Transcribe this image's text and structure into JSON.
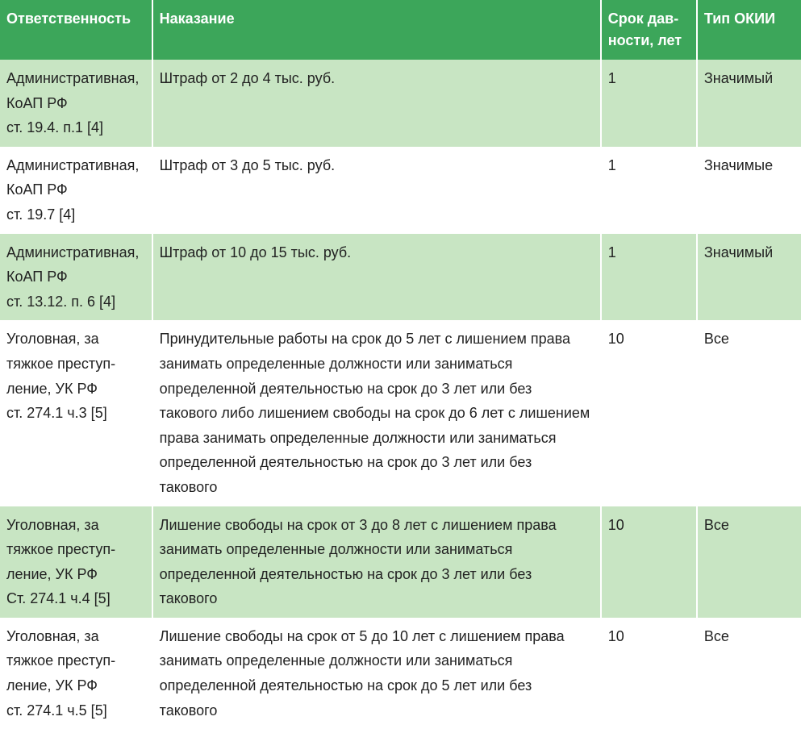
{
  "table": {
    "header_bg": "#3ca65a",
    "header_fg": "#ffffff",
    "row_even_bg": "#c8e5c3",
    "row_odd_bg": "#ffffff",
    "columns": [
      {
        "key": "responsibility",
        "label": "Ответственность",
        "width": "19%"
      },
      {
        "key": "punishment",
        "label": "Наказание",
        "width": "56%"
      },
      {
        "key": "limitation",
        "label": "Срок дав-\nности, лет",
        "width": "12%"
      },
      {
        "key": "okii_type",
        "label": "Тип ОКИИ",
        "width": "13%"
      }
    ],
    "rows": [
      {
        "responsibility": "Административная, КоАП РФ\nст. 19.4. п.1 [4]",
        "punishment": "Штраф от 2 до 4 тыс. руб.",
        "limitation": "1",
        "okii_type": "Значимый"
      },
      {
        "responsibility": "Административная, КоАП РФ\nст. 19.7 [4]",
        "punishment": "Штраф от 3 до 5 тыс. руб.",
        "limitation": "1",
        "okii_type": "Значимые"
      },
      {
        "responsibility": "Административная, КоАП РФ\nст. 13.12. п. 6 [4]",
        "punishment": "Штраф от 10 до 15 тыс. руб.",
        "limitation": "1",
        "okii_type": "Значимый"
      },
      {
        "responsibility": "Уголовная, за тяжкое преступ-\nление, УК РФ\nст. 274.1 ч.3 [5]",
        "punishment": "Принудительные работы на срок до 5 лет с лишением права занимать определенные должности или заниматься определенной деятельностью на срок до 3 лет или без такового либо лишением свободы на срок до 6 лет с лишением права занимать определенные должности или заниматься определенной деятельностью на срок до 3 лет или без такового",
        "limitation": "10",
        "okii_type": "Все"
      },
      {
        "responsibility": "Уголовная, за тяжкое преступ-\nление, УК РФ\nСт. 274.1 ч.4 [5]",
        "punishment": "Лишение свободы на срок от 3 до 8 лет с лишением права занимать определенные должности или заниматься определенной деятельностью на срок до 3 лет или без такового",
        "limitation": "10",
        "okii_type": "Все"
      },
      {
        "responsibility": "Уголовная, за тяжкое преступ-\nление, УК РФ\nст. 274.1 ч.5 [5]",
        "punishment": "Лишение свободы на срок от 5 до 10 лет с лишением права занимать определенные должности или заниматься определенной деятельностью на срок до 5 лет или без такового",
        "limitation": "10",
        "okii_type": "Все"
      }
    ]
  }
}
